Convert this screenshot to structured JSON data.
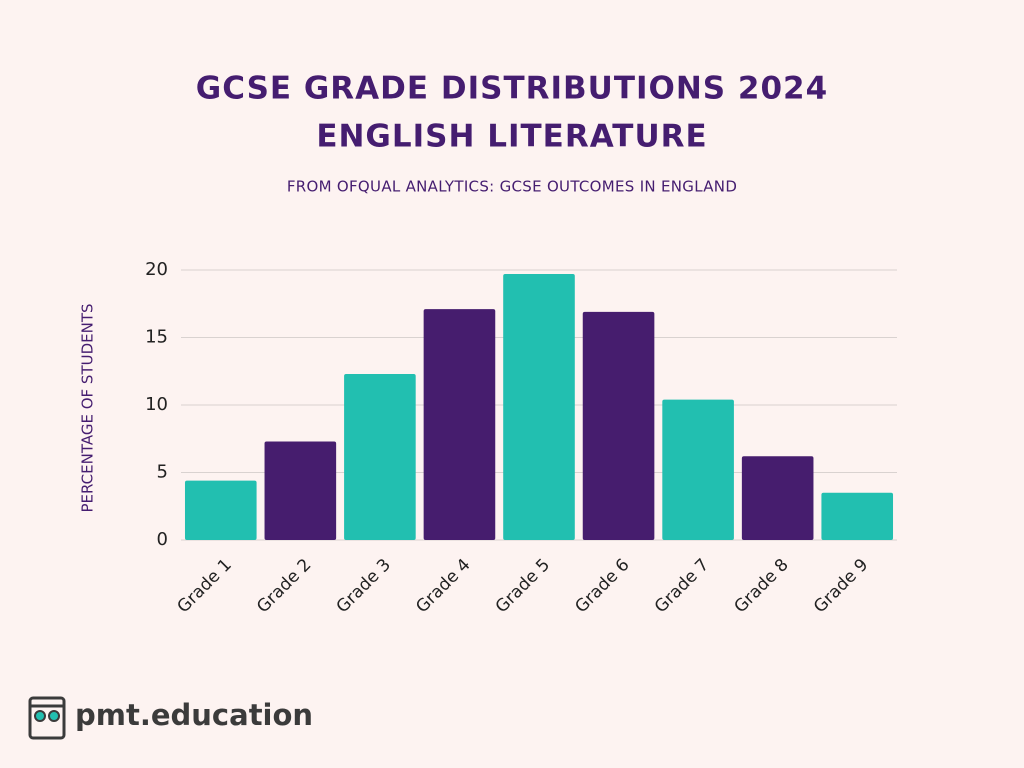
{
  "chart_data": {
    "type": "bar",
    "title": [
      "GCSE GRADE DISTRIBUTIONS 2024",
      "ENGLISH LITERATURE"
    ],
    "subtitle": "FROM OFQUAL ANALYTICS: GCSE OUTCOMES IN ENGLAND",
    "y_label": "PERCENTAGE OF STUDENTS",
    "categories": [
      "Grade 1",
      "Grade 2",
      "Grade 3",
      "Grade 4",
      "Grade 5",
      "Grade 6",
      "Grade 7",
      "Grade 8",
      "Grade 9"
    ],
    "values": [
      4.4,
      7.3,
      12.3,
      17.1,
      19.7,
      16.9,
      10.4,
      6.2,
      3.5
    ],
    "colors": [
      "#22bfb0",
      "#461d6e",
      "#22bfb0",
      "#461d6e",
      "#22bfb0",
      "#461d6e",
      "#22bfb0",
      "#461d6e",
      "#22bfb0"
    ],
    "ylim": [
      0,
      20
    ],
    "yticks": [
      0,
      5,
      10,
      15,
      20
    ],
    "grid": true,
    "source": "pmt.education"
  }
}
